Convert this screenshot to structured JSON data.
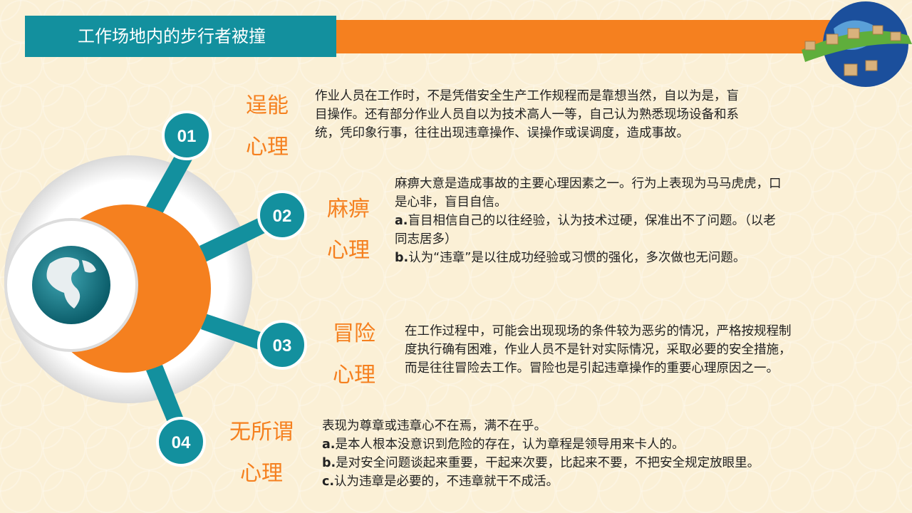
{
  "header": {
    "title": "工作场地内的步行者被撞"
  },
  "colors": {
    "teal": "#13909e",
    "orange": "#f5801f",
    "background": "#fbf0d6"
  },
  "items": [
    {
      "number": "01",
      "label_line1": "逞能",
      "label_line2": "心理",
      "lines": [
        {
          "text": "作业人员在工作时，不是凭借安全生产工作规程而是靠想当然，自以为是，盲"
        },
        {
          "text": "目操作。还有部分作业人员自以为技术高人一等，自己认为熟悉现场设备和系"
        },
        {
          "text": "统，凭印象行事，往往出现违章操作、误操作或误调度，造成事故。"
        }
      ]
    },
    {
      "number": "02",
      "label_line1": "麻痹",
      "label_line2": "心理",
      "lines": [
        {
          "text": "麻痹大意是造成事故的主要心理因素之一。行为上表现为马马虎虎，口"
        },
        {
          "text": "是心非，盲目自信。"
        },
        {
          "prefix": "a.",
          "text": "盲目相信自己的以往经验，认为技术过硬，保准出不了问题。（以老"
        },
        {
          "text": "同志居多）"
        },
        {
          "prefix": "b.",
          "text": "认为“违章”是以往成功经验或习惯的强化，多次做也无问题。"
        }
      ]
    },
    {
      "number": "03",
      "label_line1": "冒险",
      "label_line2": "心理",
      "lines": [
        {
          "text": "在工作过程中，可能会出现现场的条件较为恶劣的情况，严格按规程制"
        },
        {
          "text": "度执行确有困难，作业人员不是针对实际情况，采取必要的安全措施，"
        },
        {
          "text": "而是往往冒险去工作。冒险也是引起违章操作的重要心理原因之一。"
        }
      ]
    },
    {
      "number": "04",
      "label_line1": "无所谓",
      "label_line2": "心理",
      "lines": [
        {
          "text": "表现为尊章或违章心不在焉，满不在乎。"
        },
        {
          "prefix": "a.",
          "text": "是本人根本没意识到危险的存在，认为章程是领导用来卡人的。"
        },
        {
          "prefix": "b.",
          "text": "是对安全问题谈起来重要，干起来次要，比起来不要，不把安全规定放眼里。"
        },
        {
          "prefix": "c.",
          "text": "认为违章是必要的，不违章就干不成活。"
        }
      ]
    }
  ]
}
